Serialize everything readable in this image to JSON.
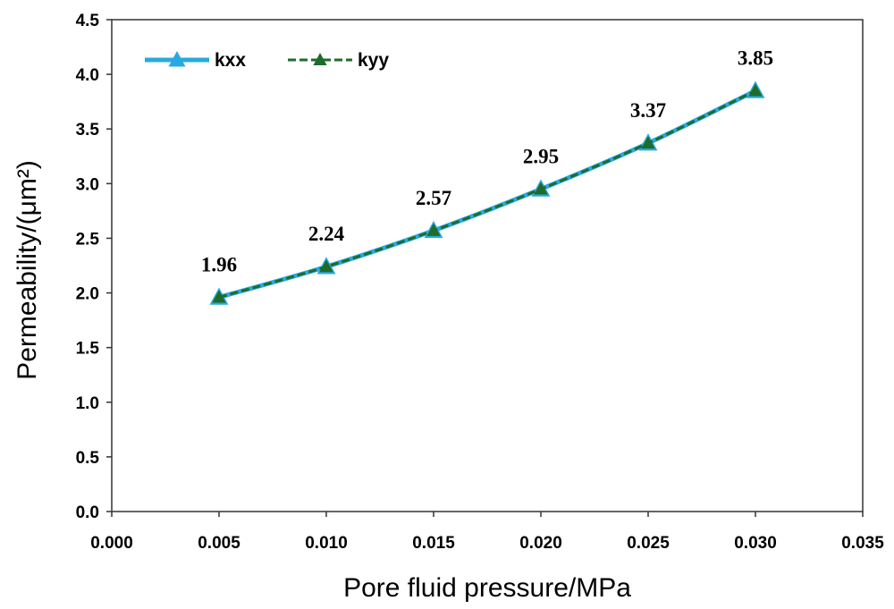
{
  "chart_data": {
    "type": "line",
    "xlabel": "Pore fluid pressure/MPa",
    "ylabel": "Permeability/(μm²)",
    "xlim": [
      0.0,
      0.035
    ],
    "ylim": [
      0.0,
      4.5
    ],
    "x_ticks": [
      "0.000",
      "0.005",
      "0.010",
      "0.015",
      "0.020",
      "0.025",
      "0.030",
      "0.035"
    ],
    "y_ticks": [
      "0.0",
      "0.5",
      "1.0",
      "1.5",
      "2.0",
      "2.5",
      "3.0",
      "3.5",
      "4.0",
      "4.5"
    ],
    "grid": false,
    "legend_position": "top-left",
    "x": [
      0.005,
      0.01,
      0.015,
      0.02,
      0.025,
      0.03
    ],
    "series": [
      {
        "name": "kxx",
        "values": [
          1.96,
          2.24,
          2.57,
          2.95,
          3.37,
          3.85
        ],
        "color": "#29a9e0",
        "marker": "triangle",
        "line_style": "solid"
      },
      {
        "name": "kyy",
        "values": [
          1.96,
          2.24,
          2.57,
          2.95,
          3.37,
          3.85
        ],
        "color": "#1e6b2a",
        "marker": "triangle",
        "line_style": "dashed"
      }
    ],
    "data_labels": [
      "1.96",
      "2.24",
      "2.57",
      "2.95",
      "3.37",
      "3.85"
    ]
  }
}
